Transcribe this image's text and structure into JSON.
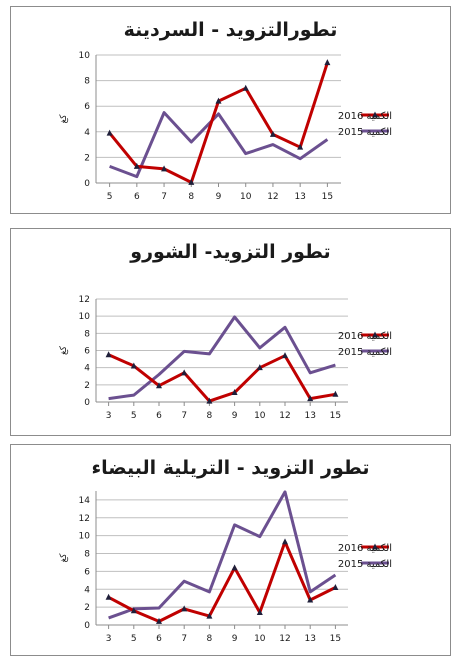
{
  "colors": {
    "series_2016": "#c00000",
    "series_2015": "#6b5090",
    "axis": "#8c8c8c",
    "grid": "#bfbfbf"
  },
  "chart_data": [
    {
      "type": "line",
      "title": "تطورالتزويد - السردينة",
      "ylabel": "كغ",
      "x": [
        "5",
        "6",
        "7",
        "8",
        "9",
        "10",
        "12",
        "13",
        "15"
      ],
      "ylim": [
        0,
        10
      ],
      "yticks": [
        0,
        2,
        4,
        6,
        8,
        10
      ],
      "grid": "horizontal",
      "legend_position": "right",
      "series": [
        {
          "name": "الكمية 2016",
          "marker": "triangle",
          "values": [
            3.9,
            1.3,
            1.1,
            0.05,
            6.4,
            7.4,
            3.8,
            2.8,
            9.4
          ]
        },
        {
          "name": "الكمية 2015",
          "marker": "none",
          "values": [
            1.3,
            0.5,
            5.5,
            3.2,
            5.4,
            2.3,
            3.0,
            1.9,
            3.4
          ]
        }
      ]
    },
    {
      "type": "line",
      "title": "تطور التزويد- الشورو",
      "ylabel": "كغ",
      "x": [
        "3",
        "5",
        "6",
        "7",
        "8",
        "9",
        "10",
        "12",
        "13",
        "15"
      ],
      "ylim": [
        0,
        12
      ],
      "yticks": [
        0,
        2,
        4,
        6,
        8,
        10,
        12
      ],
      "grid": "horizontal",
      "legend_position": "right",
      "series": [
        {
          "name": "الكمية 2016",
          "marker": "triangle",
          "values": [
            5.5,
            4.2,
            1.9,
            3.4,
            0.1,
            1.1,
            4.0,
            5.4,
            0.4,
            0.9
          ]
        },
        {
          "name": "الكمية 2015",
          "marker": "none",
          "values": [
            0.4,
            0.8,
            3.2,
            5.9,
            5.6,
            9.9,
            6.3,
            8.7,
            3.4,
            4.3
          ]
        }
      ]
    },
    {
      "type": "line",
      "title": "تطور التزويد - التريلية البيضاء",
      "ylabel": "كغ",
      "x": [
        "3",
        "5",
        "6",
        "7",
        "8",
        "9",
        "10",
        "12",
        "13",
        "15"
      ],
      "ylim": [
        0,
        15
      ],
      "yticks": [
        0,
        2,
        4,
        6,
        8,
        10,
        12,
        14
      ],
      "grid": "horizontal",
      "legend_position": "right",
      "series": [
        {
          "name": "الكمية 2016",
          "marker": "triangle",
          "values": [
            3.1,
            1.6,
            0.4,
            1.8,
            1.0,
            6.4,
            1.4,
            9.3,
            2.8,
            4.2
          ]
        },
        {
          "name": "الكمية 2015",
          "marker": "none",
          "values": [
            0.8,
            1.8,
            1.9,
            4.9,
            3.7,
            11.2,
            9.9,
            14.9,
            3.7,
            5.6
          ]
        }
      ]
    }
  ]
}
